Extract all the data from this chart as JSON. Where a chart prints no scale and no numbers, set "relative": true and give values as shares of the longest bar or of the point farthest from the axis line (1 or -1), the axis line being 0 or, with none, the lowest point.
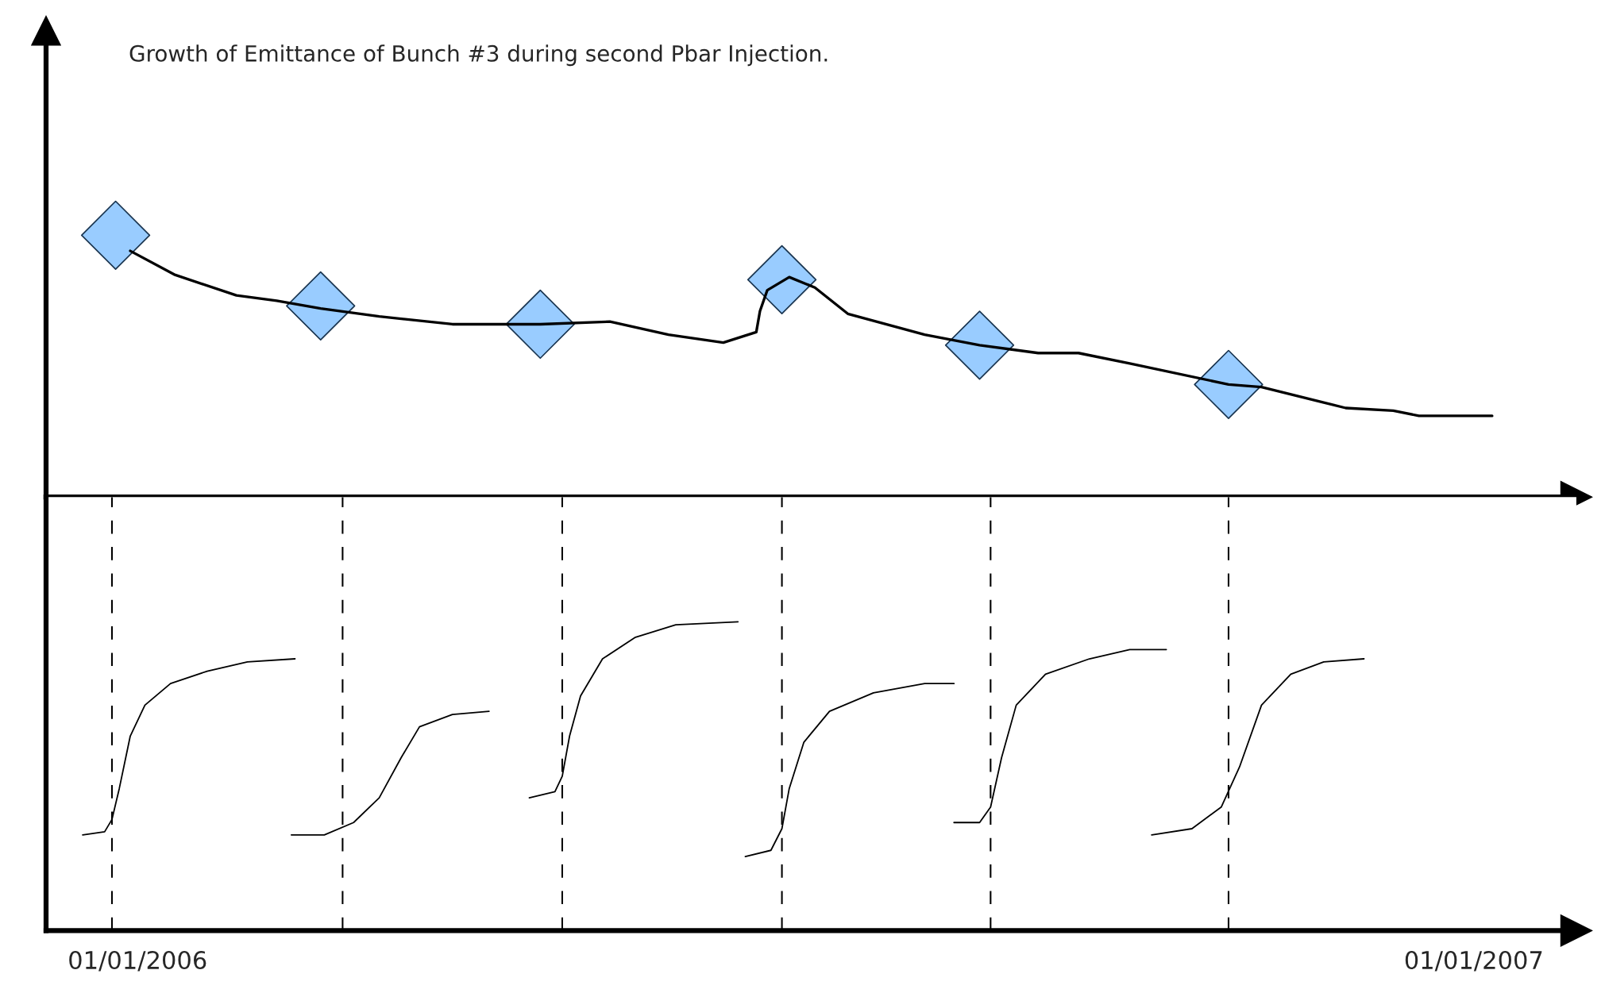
{
  "chart_data": [
    {
      "type": "line",
      "title": "Growth of Emittance of Bunch #3 during second Pbar Injection.",
      "relative": true,
      "tick_labels": false,
      "xlim": [
        "2005-12-07",
        "2007-01-29"
      ],
      "series": [
        {
          "type": "line",
          "color": "#000000",
          "line_style": "solid",
          "marker": "none",
          "x": [
            "2005-12-30",
            "2006-01-11",
            "2006-01-28",
            "2006-02-08",
            "2006-02-20",
            "2006-03-08",
            "2006-03-28",
            "2006-04-14",
            "2006-04-21",
            "2006-05-10",
            "2006-05-26",
            "2006-06-10",
            "2006-06-19",
            "2006-06-20",
            "2006-06-22",
            "2006-06-28",
            "2006-07-05",
            "2006-07-14",
            "2006-08-04",
            "2006-08-19",
            "2006-09-04",
            "2006-09-15",
            "2006-09-29",
            "2006-10-26",
            "2006-11-04",
            "2006-11-27",
            "2006-12-10",
            "2006-12-17",
            "2007-01-06"
          ],
          "values": [
            0.94,
            0.85,
            0.77,
            0.75,
            0.72,
            0.69,
            0.66,
            0.66,
            0.66,
            0.67,
            0.62,
            0.59,
            0.63,
            0.71,
            0.79,
            0.84,
            0.8,
            0.7,
            0.62,
            0.58,
            0.55,
            0.55,
            0.51,
            0.43,
            0.42,
            0.34,
            0.33,
            0.31,
            0.31
          ]
        },
        {
          "type": "scatter",
          "color": "#99ccff",
          "marker": "diamond",
          "x": [
            "2005-12-26",
            "2006-02-20",
            "2006-04-21",
            "2006-06-26",
            "2006-08-19",
            "2006-10-26"
          ],
          "values": [
            1,
            0.73,
            0.66,
            0.83,
            0.58,
            0.43
          ]
        }
      ]
    },
    {
      "type": "line",
      "relative": true,
      "tick_labels": "x",
      "xlim": [
        "2005-12-07",
        "2007-01-29"
      ],
      "xticks": [
        {
          "value": "2006-01-01",
          "label": "01/01/2006"
        },
        {
          "value": "2007-01-01",
          "label": "01/01/2007"
        }
      ],
      "series": [
        {
          "color": "#000000",
          "x": [
            "2005-12-17",
            "2005-12-23",
            "2005-12-25",
            "2005-12-27",
            "2005-12-30",
            "2006-01-03",
            "2006-01-10",
            "2006-01-20",
            "2006-01-31",
            "2006-02-13"
          ],
          "values": [
            0.31,
            0.32,
            0.36,
            0.46,
            0.63,
            0.73,
            0.8,
            0.84,
            0.87,
            0.88
          ]
        },
        {
          "color": "#000000",
          "x": [
            "2006-02-12",
            "2006-02-21",
            "2006-03-01",
            "2006-03-08",
            "2006-03-14",
            "2006-03-19",
            "2006-03-28",
            "2006-04-07"
          ],
          "values": [
            0.31,
            0.31,
            0.35,
            0.43,
            0.56,
            0.66,
            0.7,
            0.71
          ]
        },
        {
          "color": "#000000",
          "x": [
            "2006-04-18",
            "2006-04-25",
            "2006-04-27",
            "2006-04-29",
            "2006-05-02",
            "2006-05-08",
            "2006-05-17",
            "2006-05-28",
            "2006-06-14"
          ],
          "values": [
            0.43,
            0.45,
            0.5,
            0.63,
            0.76,
            0.88,
            0.95,
            0.99,
            1
          ]
        },
        {
          "color": "#000000",
          "x": [
            "2006-06-16",
            "2006-06-23",
            "2006-06-26",
            "2006-06-28",
            "2006-07-02",
            "2006-07-09",
            "2006-07-21",
            "2006-08-04",
            "2006-08-12"
          ],
          "values": [
            0.24,
            0.26,
            0.33,
            0.46,
            0.61,
            0.71,
            0.77,
            0.8,
            0.8
          ]
        },
        {
          "color": "#000000",
          "x": [
            "2006-08-12",
            "2006-08-19",
            "2006-08-22",
            "2006-08-25",
            "2006-08-29",
            "2006-09-06",
            "2006-09-18",
            "2006-09-29",
            "2006-10-09"
          ],
          "values": [
            0.35,
            0.35,
            0.4,
            0.56,
            0.73,
            0.83,
            0.88,
            0.91,
            0.91
          ]
        },
        {
          "color": "#000000",
          "x": [
            "2006-10-05",
            "2006-10-16",
            "2006-10-24",
            "2006-10-29",
            "2006-11-04",
            "2006-11-12",
            "2006-11-21",
            "2006-12-02"
          ],
          "values": [
            0.31,
            0.33,
            0.4,
            0.53,
            0.73,
            0.83,
            0.87,
            0.88
          ]
        }
      ],
      "ref_lines": [
        {
          "axis": "x",
          "value": "2005-12-25",
          "color": "#000000",
          "line_style": "dashed"
        },
        {
          "axis": "x",
          "value": "2006-02-26",
          "color": "#000000",
          "line_style": "dashed"
        },
        {
          "axis": "x",
          "value": "2006-04-27",
          "color": "#000000",
          "line_style": "dashed"
        },
        {
          "axis": "x",
          "value": "2006-06-26",
          "color": "#000000",
          "line_style": "dashed"
        },
        {
          "axis": "x",
          "value": "2006-08-22",
          "color": "#000000",
          "line_style": "dashed"
        },
        {
          "axis": "x",
          "value": "2006-10-26",
          "color": "#000000",
          "line_style": "dashed"
        }
      ]
    }
  ]
}
